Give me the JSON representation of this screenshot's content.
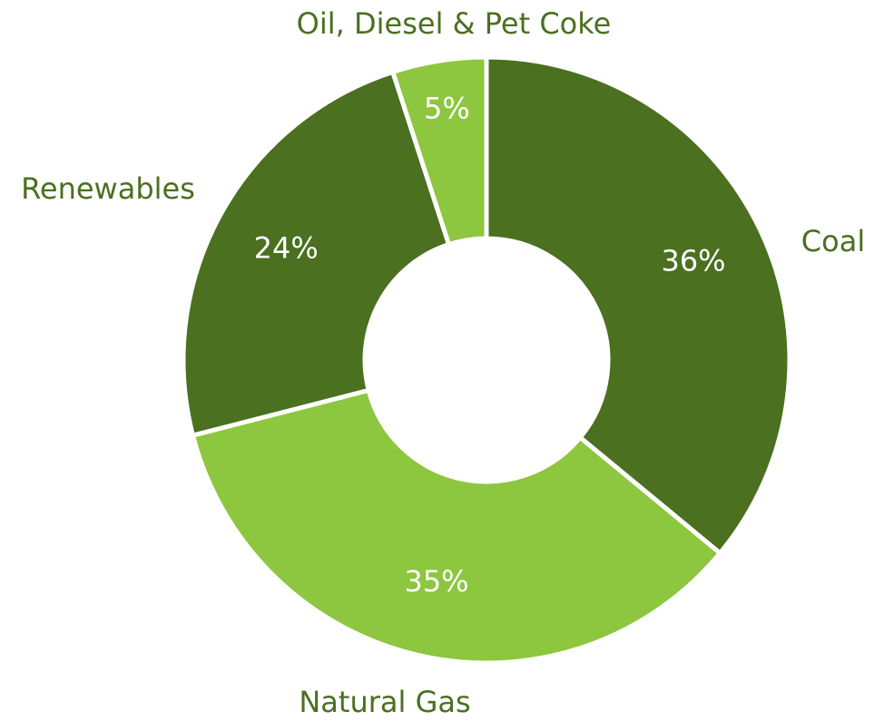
{
  "chart_data": {
    "type": "pie",
    "donut": true,
    "categories": [
      "Coal",
      "Natural Gas",
      "Renewables",
      "Oil, Diesel & Pet Coke"
    ],
    "values": [
      36,
      35,
      24,
      5
    ],
    "value_labels": [
      "36%",
      "35%",
      "24%",
      "5%"
    ],
    "colors": [
      "#4a7020",
      "#8dc63f",
      "#4a7020",
      "#8dc63f"
    ],
    "label_color": "#4a7020",
    "start": "12 o'clock",
    "direction": "clockwise",
    "legend": "none"
  }
}
